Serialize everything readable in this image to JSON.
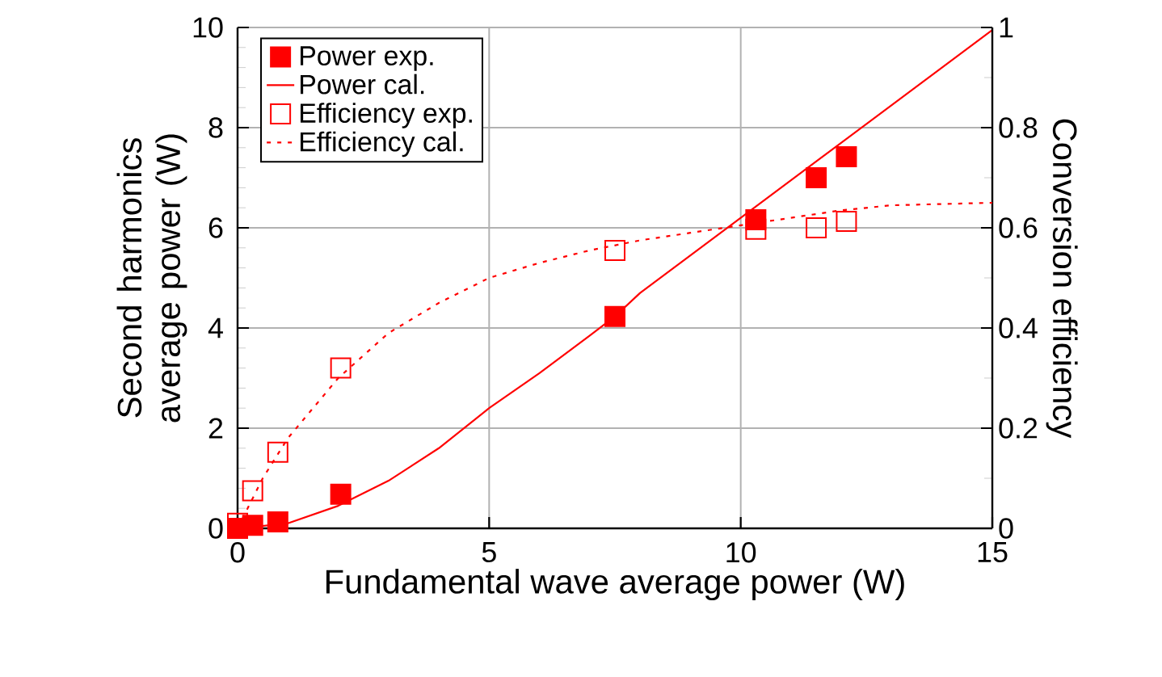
{
  "chart_data": {
    "type": "scatter",
    "xlabel": "Fundamental wave average power (W)",
    "ylabel": "Second harmonics average power (W)",
    "y2label": "Conversion efficiency",
    "xlim": [
      0,
      15
    ],
    "xticks": [
      0,
      5,
      10,
      15
    ],
    "ylim": [
      0,
      10
    ],
    "yticks": [
      0,
      2,
      4,
      6,
      8,
      10
    ],
    "y2lim": [
      0,
      1
    ],
    "y2ticks": [
      0,
      0.2,
      0.4,
      0.6,
      0.8,
      1
    ],
    "grid": true,
    "legend": "top left",
    "series": [
      {
        "name": "Power exp.",
        "type": "scatter",
        "marker": "square",
        "color": "#ff0000",
        "x": [
          0,
          0.3,
          0.8,
          2.05,
          7.5,
          10.3,
          11.5,
          12.1
        ],
        "values": [
          0,
          0.06,
          0.13,
          0.68,
          4.23,
          6.16,
          7.0,
          7.42
        ]
      },
      {
        "name": "Power cal.",
        "type": "line",
        "line_style": "solid",
        "color": "#ff0000",
        "x": [
          0,
          1,
          2,
          3,
          4,
          5,
          6,
          7,
          7.5,
          8,
          10,
          12,
          15
        ],
        "values": [
          0,
          0.1,
          0.45,
          0.95,
          1.6,
          2.4,
          3.1,
          3.85,
          4.23,
          4.7,
          6.2,
          7.7,
          9.95
        ]
      },
      {
        "name": "Efficiency exp.",
        "type": "scatter",
        "marker": "square",
        "axis": "y2",
        "color": "#ff0000",
        "x": [
          0,
          0.3,
          0.8,
          2.05,
          7.5,
          10.3,
          11.5,
          12.1
        ],
        "values": [
          0.01,
          0.075,
          0.152,
          0.32,
          0.555,
          0.597,
          0.6,
          0.613
        ]
      },
      {
        "name": "Efficiency cal.",
        "type": "line",
        "line_style": "dotted",
        "axis": "y2",
        "color": "#ff0000",
        "x": [
          0,
          0.5,
          1,
          2,
          3,
          4,
          5,
          6,
          7,
          8,
          9,
          10,
          11,
          12,
          13,
          15
        ],
        "values": [
          0,
          0.1,
          0.18,
          0.3,
          0.39,
          0.45,
          0.5,
          0.53,
          0.555,
          0.575,
          0.59,
          0.605,
          0.62,
          0.635,
          0.645,
          0.65
        ]
      }
    ]
  }
}
